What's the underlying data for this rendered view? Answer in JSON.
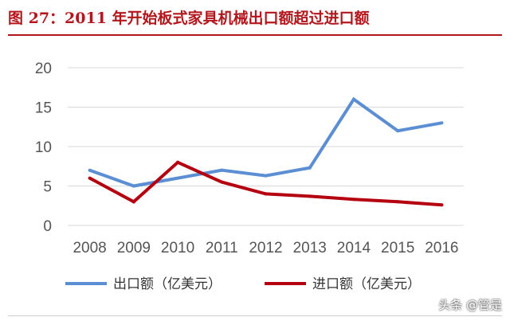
{
  "header": {
    "title": "图 27：2011 年开始板式家具机械出口额超过进口额"
  },
  "watermark": "头条 @管是",
  "colors": {
    "export": "#5b8ed3",
    "import": "#b4000f",
    "title": "#b3171d",
    "grid": "#d9d9d9"
  },
  "chart_data": {
    "type": "line",
    "categories": [
      "2008",
      "2009",
      "2010",
      "2011",
      "2012",
      "2013",
      "2014",
      "2015",
      "2016"
    ],
    "yticks": [
      "0",
      "5",
      "10",
      "15",
      "20"
    ],
    "ylim": [
      0,
      20
    ],
    "grid": true,
    "legend_position": "bottom",
    "series": [
      {
        "name": "出口额（亿美元）",
        "color": "#5b8ed3",
        "values": [
          7,
          5,
          6,
          7,
          6.3,
          7.3,
          16,
          12,
          13
        ]
      },
      {
        "name": "进口额（亿美元）",
        "color": "#b4000f",
        "values": [
          6,
          3,
          8,
          5.5,
          4,
          3.7,
          3.3,
          3,
          2.6
        ]
      }
    ]
  }
}
